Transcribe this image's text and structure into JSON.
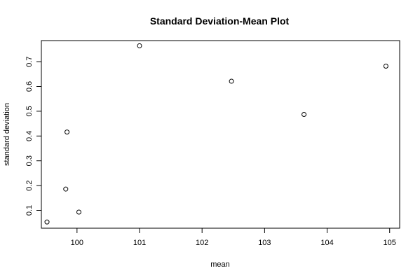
{
  "chart_data": {
    "type": "scatter",
    "title": "Standard Deviation-Mean Plot",
    "xlabel": "mean",
    "ylabel": "standard deviation",
    "xlim": [
      99.43,
      105.16
    ],
    "ylim": [
      0.028,
      0.785
    ],
    "x_ticks": [
      100,
      101,
      102,
      103,
      104,
      105
    ],
    "x_tick_labels": [
      "100",
      "101",
      "102",
      "103",
      "104",
      "105"
    ],
    "y_ticks": [
      0.1,
      0.2,
      0.3,
      0.4,
      0.5,
      0.6,
      0.7
    ],
    "y_tick_labels": [
      "0.1",
      "0.2",
      "0.3",
      "0.4",
      "0.5",
      "0.6",
      "0.7"
    ],
    "grid": false,
    "points": [
      {
        "x": 99.52,
        "y": 0.053
      },
      {
        "x": 99.82,
        "y": 0.186
      },
      {
        "x": 99.84,
        "y": 0.416
      },
      {
        "x": 100.03,
        "y": 0.093
      },
      {
        "x": 101.0,
        "y": 0.764
      },
      {
        "x": 102.47,
        "y": 0.621
      },
      {
        "x": 103.63,
        "y": 0.487
      },
      {
        "x": 104.94,
        "y": 0.682
      }
    ]
  }
}
